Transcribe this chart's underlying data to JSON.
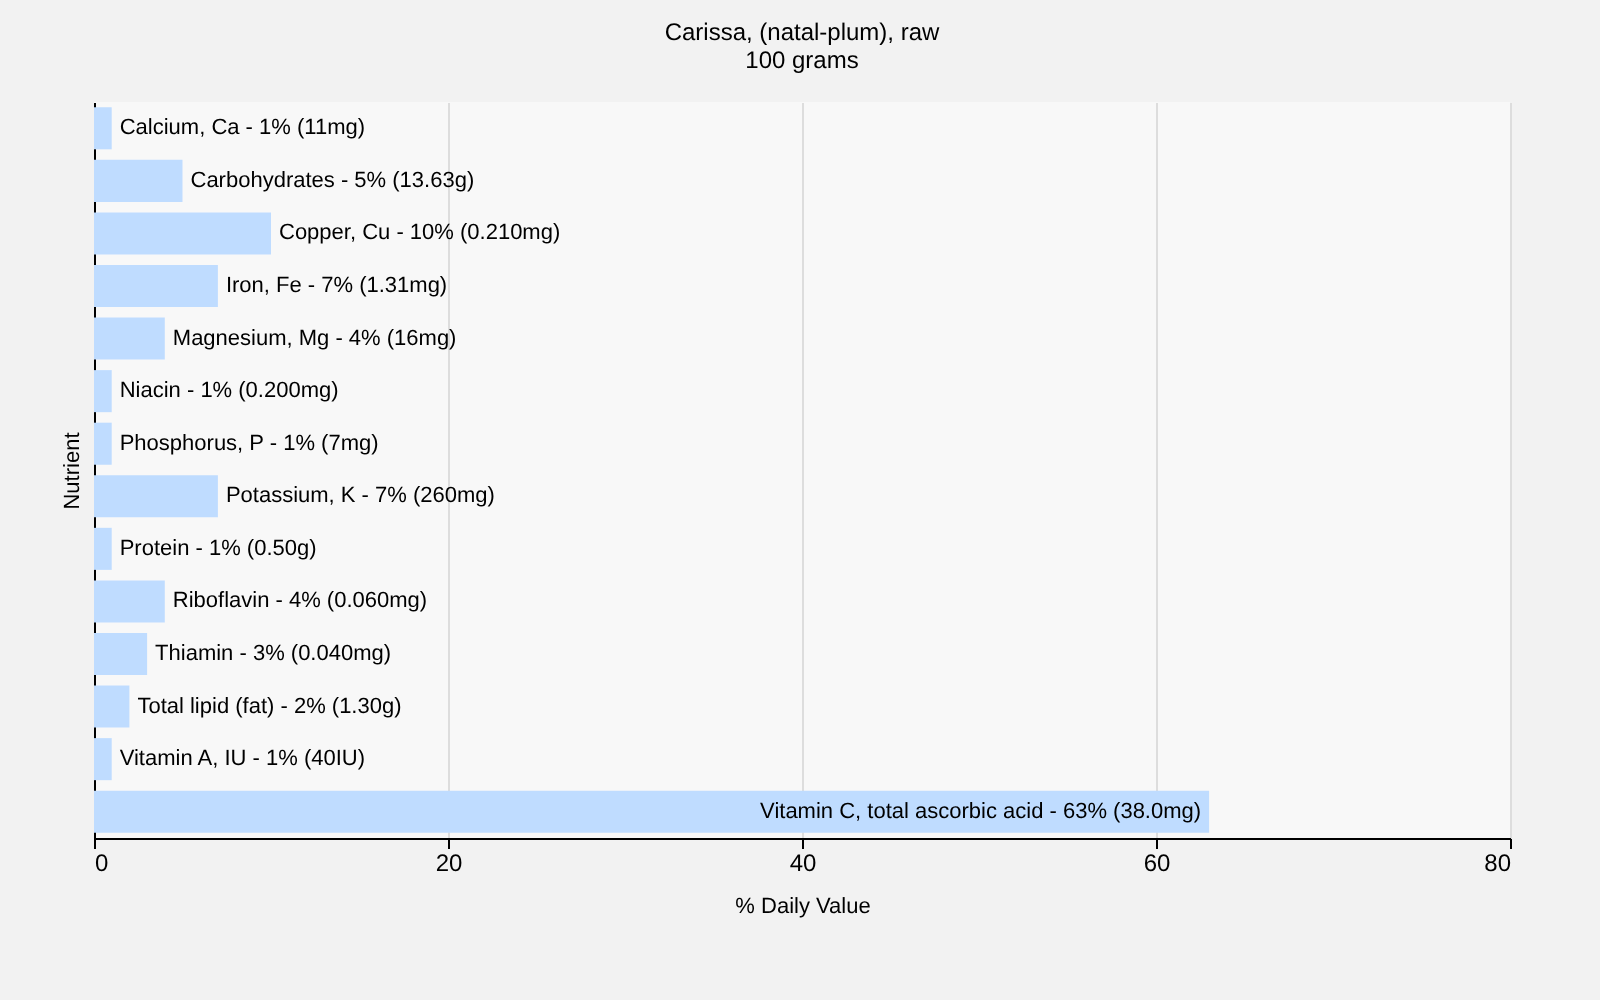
{
  "chart_data": {
    "type": "bar",
    "orientation": "horizontal",
    "title": "Carissa, (natal-plum), raw",
    "subtitle": "100 grams",
    "xlabel": "% Daily Value",
    "ylabel": "Nutrient",
    "categories": [
      "Calcium, Ca - 1% (11mg)",
      "Carbohydrates - 5% (13.63g)",
      "Copper, Cu - 10% (0.210mg)",
      "Iron, Fe - 7% (1.31mg)",
      "Magnesium, Mg - 4% (16mg)",
      "Niacin - 1% (0.200mg)",
      "Phosphorus, P - 1% (7mg)",
      "Potassium, K - 7% (260mg)",
      "Protein - 1% (0.50g)",
      "Riboflavin - 4% (0.060mg)",
      "Thiamin - 3% (0.040mg)",
      "Total lipid (fat) - 2% (1.30g)",
      "Vitamin A, IU - 1% (40IU)",
      "Vitamin C, total ascorbic acid - 63% (38.0mg)"
    ],
    "values": [
      1,
      5,
      10,
      7,
      4,
      1,
      1,
      7,
      1,
      4,
      3,
      2,
      1,
      63
    ],
    "color": "#bfdcff",
    "xlim": [
      0,
      80
    ],
    "xticks": [
      0,
      20,
      40,
      60,
      80
    ],
    "grid": "x",
    "tick_labels": "x"
  }
}
